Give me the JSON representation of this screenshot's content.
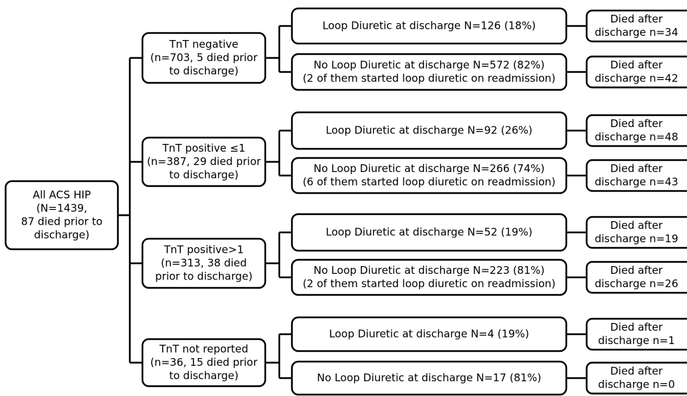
{
  "root": {
    "lines": [
      "All ACS HIP",
      "(N=1439,",
      "87 died prior to",
      "discharge)"
    ]
  },
  "groups": [
    {
      "lines": [
        "TnT negative",
        "(n=703, 5 died prior",
        "to discharge)"
      ],
      "branches": [
        {
          "lines": [
            "Loop Diuretic at discharge N=126 (18%)"
          ],
          "outcome": [
            "Died after",
            "discharge n=34"
          ]
        },
        {
          "lines": [
            "No Loop Diuretic at discharge N=572 (82%)",
            "(2 of them started loop diuretic on readmission)"
          ],
          "outcome": [
            "Died after",
            "discharge n=42"
          ]
        }
      ]
    },
    {
      "lines": [
        "TnT positive ≤1",
        "(n=387, 29 died prior",
        "to discharge)"
      ],
      "branches": [
        {
          "lines": [
            "Loop Diuretic at discharge N=92 (26%)"
          ],
          "outcome": [
            "Died after",
            "discharge n=48"
          ]
        },
        {
          "lines": [
            "No Loop Diuretic at discharge N=266 (74%)",
            "(6 of them started loop diuretic on readmission)"
          ],
          "outcome": [
            "Died after",
            "discharge n=43"
          ]
        }
      ]
    },
    {
      "lines": [
        "TnT positive>1",
        "(n=313, 38 died",
        "prior to discharge)"
      ],
      "branches": [
        {
          "lines": [
            "Loop Diuretic at discharge N=52 (19%)"
          ],
          "outcome": [
            "Died after",
            "discharge n=19"
          ]
        },
        {
          "lines": [
            "No Loop Diuretic at discharge N=223 (81%)",
            "(2 of them started loop diuretic on readmission)"
          ],
          "outcome": [
            "Died after",
            "discharge n=26"
          ]
        }
      ]
    },
    {
      "lines": [
        "TnT not reported",
        "(n=36, 15 died prior",
        "to discharge)"
      ],
      "branches": [
        {
          "lines": [
            "Loop Diuretic at discharge N=4 (19%)"
          ],
          "outcome": [
            "Died after",
            "discharge n=1"
          ]
        },
        {
          "lines": [
            "No Loop Diuretic at discharge N=17 (81%)"
          ],
          "outcome": [
            "Died after",
            "discharge n=0"
          ]
        }
      ]
    }
  ]
}
